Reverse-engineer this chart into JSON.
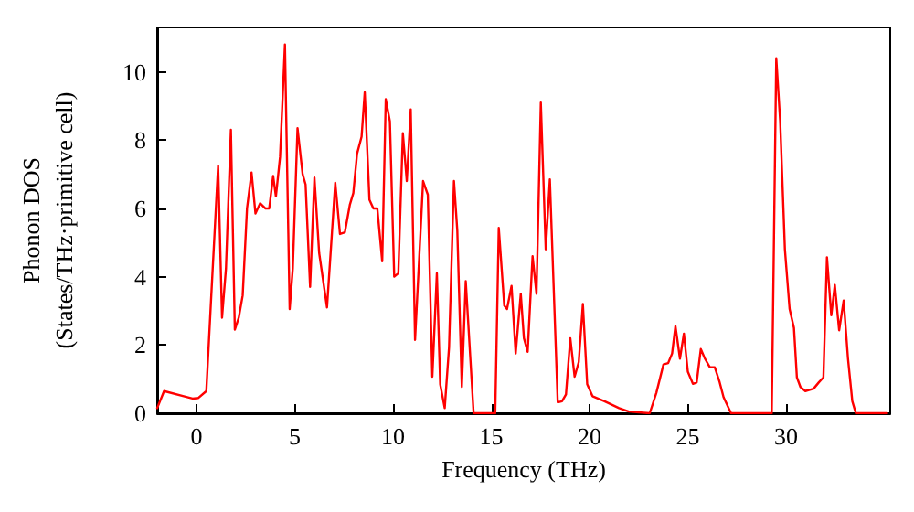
{
  "chart_data": {
    "type": "line",
    "xlabel": "Frequency (THz)",
    "ylabel": "Phonon DOS\n(States/THz·primitive cell)",
    "xlim": [
      -2,
      35.3
    ],
    "ylim": [
      0,
      11.3
    ],
    "xticks": [
      0,
      5,
      10,
      15,
      20,
      25,
      30
    ],
    "yticks": [
      0,
      2,
      4,
      6,
      8,
      10
    ],
    "marker": "none",
    "line_style": "solid",
    "series": [
      {
        "color": "#ff0000",
        "x": [
          -2.0,
          -1.65,
          -0.65,
          -0.2,
          0.1,
          0.5,
          0.73,
          1.1,
          1.3,
          1.5,
          1.75,
          1.95,
          2.15,
          2.35,
          2.57,
          2.8,
          3.0,
          3.24,
          3.5,
          3.7,
          3.9,
          4.04,
          4.25,
          4.5,
          4.74,
          4.9,
          5.14,
          5.4,
          5.55,
          5.78,
          6.0,
          6.24,
          6.64,
          7.06,
          7.3,
          7.55,
          7.8,
          7.98,
          8.17,
          8.4,
          8.56,
          8.8,
          9.0,
          9.2,
          9.45,
          9.63,
          9.84,
          10.06,
          10.27,
          10.5,
          10.7,
          10.9,
          11.12,
          11.53,
          11.77,
          12.0,
          12.23,
          12.4,
          12.63,
          12.85,
          13.1,
          13.27,
          13.5,
          13.7,
          14.1,
          15.2,
          15.38,
          15.66,
          15.8,
          16.03,
          16.24,
          16.5,
          16.66,
          16.85,
          17.1,
          17.3,
          17.52,
          17.77,
          17.98,
          18.38,
          18.6,
          18.8,
          19.02,
          19.24,
          19.45,
          19.66,
          19.88,
          20.15,
          20.76,
          21.5,
          22.0,
          23.06,
          23.4,
          23.76,
          24.0,
          24.2,
          24.37,
          24.6,
          24.8,
          25.0,
          25.26,
          25.45,
          25.66,
          25.87,
          26.12,
          26.37,
          26.6,
          26.82,
          27.2,
          29.27,
          29.5,
          29.7,
          29.94,
          30.18,
          30.4,
          30.55,
          30.73,
          30.98,
          31.4,
          31.66,
          31.9,
          32.08,
          32.3,
          32.48,
          32.7,
          32.93,
          33.15,
          33.37,
          33.55,
          35.14
        ],
        "values": [
          0.15,
          0.65,
          0.5,
          0.43,
          0.45,
          0.65,
          3.2,
          7.25,
          2.8,
          4.25,
          8.3,
          2.45,
          2.8,
          3.45,
          6.0,
          7.05,
          5.85,
          6.15,
          6.0,
          6.0,
          6.95,
          6.35,
          7.5,
          10.8,
          3.05,
          4.25,
          8.35,
          7.0,
          6.7,
          3.7,
          6.9,
          4.7,
          3.1,
          6.75,
          5.25,
          5.3,
          6.1,
          6.45,
          7.6,
          8.1,
          9.4,
          6.25,
          6.0,
          6.0,
          4.45,
          9.2,
          8.55,
          4.0,
          4.1,
          8.2,
          6.8,
          8.9,
          2.15,
          6.8,
          6.4,
          1.07,
          4.1,
          0.85,
          0.15,
          1.93,
          6.8,
          5.35,
          0.77,
          3.87,
          0,
          0,
          5.43,
          3.15,
          3.05,
          3.73,
          1.75,
          3.5,
          2.2,
          1.8,
          4.6,
          3.5,
          9.1,
          4.8,
          6.85,
          0.32,
          0.35,
          0.55,
          2.2,
          1.07,
          1.5,
          3.2,
          0.85,
          0.5,
          0.35,
          0.15,
          0.05,
          0,
          0.6,
          1.43,
          1.47,
          1.75,
          2.55,
          1.6,
          2.33,
          1.22,
          0.86,
          0.9,
          1.88,
          1.6,
          1.35,
          1.35,
          0.95,
          0.47,
          0,
          0,
          10.4,
          8.55,
          4.8,
          3.05,
          2.5,
          1.05,
          0.77,
          0.65,
          0.72,
          0.9,
          1.05,
          4.57,
          2.87,
          3.76,
          2.43,
          3.3,
          1.6,
          0.35,
          0,
          0
        ]
      }
    ]
  }
}
